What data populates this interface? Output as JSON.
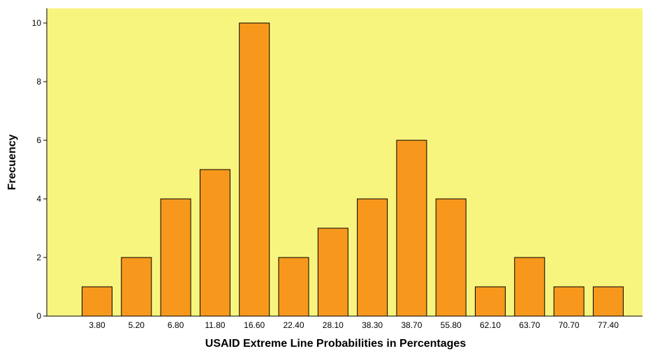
{
  "chart_data": {
    "type": "bar",
    "title": "",
    "xlabel": "USAID Extreme Line Probabilities in Percentages",
    "ylabel": "Frecuency",
    "categories": [
      "3.80",
      "5.20",
      "6.80",
      "11.80",
      "16.60",
      "22.40",
      "28.10",
      "38.30",
      "38.70",
      "55.80",
      "62.10",
      "63.70",
      "70.70",
      "77.40"
    ],
    "values": [
      1,
      2,
      4,
      5,
      10,
      2,
      3,
      4,
      6,
      4,
      1,
      2,
      1,
      1
    ],
    "ylim": [
      0,
      10.5
    ],
    "yticks": [
      "0",
      "2",
      "4",
      "6",
      "8",
      "10"
    ],
    "grid": false,
    "colors": {
      "plot_background": "#f8f57e",
      "bar_fill": "#f7981d",
      "bar_stroke": "#000000"
    }
  }
}
